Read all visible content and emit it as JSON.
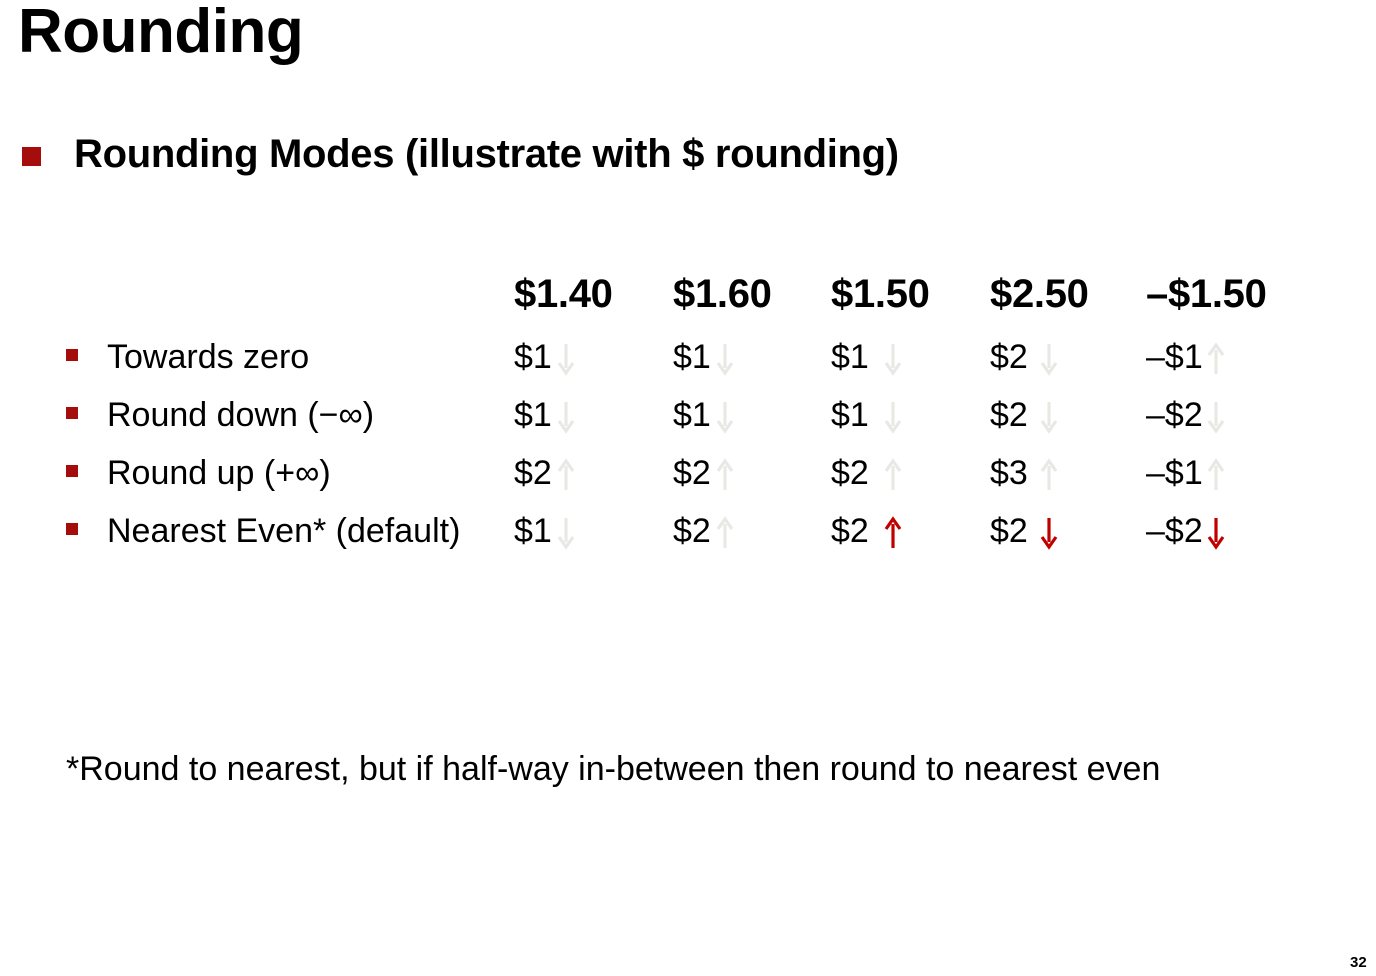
{
  "title": "Rounding",
  "main_bullet": "Rounding Modes (illustrate with $ rounding)",
  "columns": [
    "$1.40",
    "$1.60",
    "$1.50",
    "$2.50",
    "–$1.50"
  ],
  "rows": [
    {
      "label": "Towards zero",
      "values": [
        "$1",
        "$1",
        "$1",
        "$2",
        "–$1"
      ],
      "arrows": [
        {
          "icon": "arrow-down-icon",
          "highlight": false
        },
        {
          "icon": "arrow-down-icon",
          "highlight": false
        },
        {
          "icon": "arrow-down-icon",
          "highlight": false
        },
        {
          "icon": "arrow-down-icon",
          "highlight": false
        },
        {
          "icon": "arrow-up-icon",
          "highlight": false
        }
      ]
    },
    {
      "label": "Round down (−∞)",
      "values": [
        "$1",
        "$1",
        "$1",
        "$2",
        "–$2"
      ],
      "arrows": [
        {
          "icon": "arrow-down-icon",
          "highlight": false
        },
        {
          "icon": "arrow-down-icon",
          "highlight": false
        },
        {
          "icon": "arrow-down-icon",
          "highlight": false
        },
        {
          "icon": "arrow-down-icon",
          "highlight": false
        },
        {
          "icon": "arrow-down-icon",
          "highlight": false
        }
      ]
    },
    {
      "label": "Round up (+∞)",
      "values": [
        "$2",
        "$2",
        "$2",
        "$3",
        "–$1"
      ],
      "arrows": [
        {
          "icon": "arrow-up-icon",
          "highlight": false
        },
        {
          "icon": "arrow-up-icon",
          "highlight": false
        },
        {
          "icon": "arrow-up-icon",
          "highlight": false
        },
        {
          "icon": "arrow-up-icon",
          "highlight": false
        },
        {
          "icon": "arrow-up-icon",
          "highlight": false
        }
      ]
    },
    {
      "label": "Nearest Even* (default)",
      "values": [
        "$1",
        "$2",
        "$2",
        "$2",
        "–$2"
      ],
      "arrows": [
        {
          "icon": "arrow-down-icon",
          "highlight": false
        },
        {
          "icon": "arrow-up-icon",
          "highlight": false
        },
        {
          "icon": "arrow-up-icon",
          "highlight": true
        },
        {
          "icon": "arrow-down-icon",
          "highlight": true
        },
        {
          "icon": "arrow-down-icon",
          "highlight": true
        }
      ]
    }
  ],
  "footnote": "*Round to nearest, but if half-way in-between then round to nearest even",
  "page_number": "32",
  "colors": {
    "accent": "#a50d0d",
    "highlight_arrow": "#c00000",
    "faint_arrow": "#e8e8e4"
  }
}
